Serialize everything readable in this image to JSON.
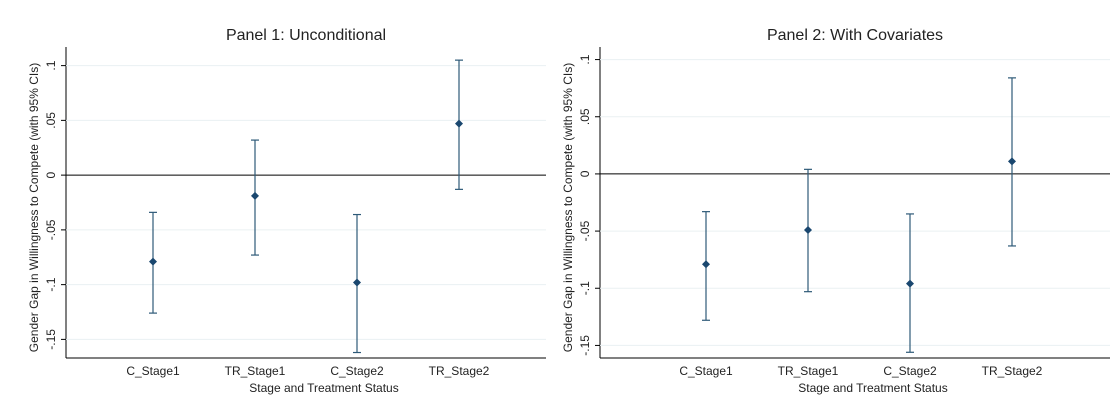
{
  "chart_data": [
    {
      "type": "errorbar",
      "title": "Panel 1: Unconditional",
      "y_label": "Gender Gap in Willingness to Compete (with 95% CIs)",
      "x_label": "Stage and Treatment Status",
      "categories": [
        "C_Stage1",
        "TR_Stage1",
        "C_Stage2",
        "TR_Stage2"
      ],
      "values": [
        -0.079,
        -0.019,
        -0.098,
        0.047
      ],
      "ci_lower": [
        -0.126,
        -0.073,
        -0.162,
        -0.013
      ],
      "ci_upper": [
        -0.034,
        0.032,
        -0.036,
        0.105
      ],
      "color": "#1a476f",
      "ylim": [
        -0.167,
        0.117
      ],
      "yticks": [
        {
          "value": -0.15,
          "label": "-.15"
        },
        {
          "value": -0.1,
          "label": "-.1"
        },
        {
          "value": -0.05,
          "label": "-.05"
        },
        0,
        {
          "value": 0.05,
          "label": ".05"
        },
        {
          "value": 0.1,
          "label": ".1"
        }
      ],
      "grid": true
    },
    {
      "type": "errorbar",
      "title": "Panel 2: With Covariates",
      "y_label": "Gender Gap in Willingness to Compete (with 95% CIs)",
      "x_label": "Stage and Treatment Status",
      "categories": [
        "C_Stage1",
        "TR_Stage1",
        "C_Stage2",
        "TR_Stage2"
      ],
      "values": [
        -0.079,
        -0.049,
        -0.096,
        0.011
      ],
      "ci_lower": [
        -0.128,
        -0.103,
        -0.156,
        -0.063
      ],
      "ci_upper": [
        -0.033,
        0.004,
        -0.035,
        0.084
      ],
      "color": "#1a476f",
      "ylim": [
        -0.161,
        0.111
      ],
      "yticks": [
        {
          "value": -0.15,
          "label": "-.15"
        },
        {
          "value": -0.1,
          "label": "-.1"
        },
        {
          "value": -0.05,
          "label": "-.05"
        },
        0,
        {
          "value": 0.05,
          "label": ".05"
        },
        {
          "value": 0.1,
          "label": ".1"
        }
      ],
      "grid": true
    }
  ]
}
